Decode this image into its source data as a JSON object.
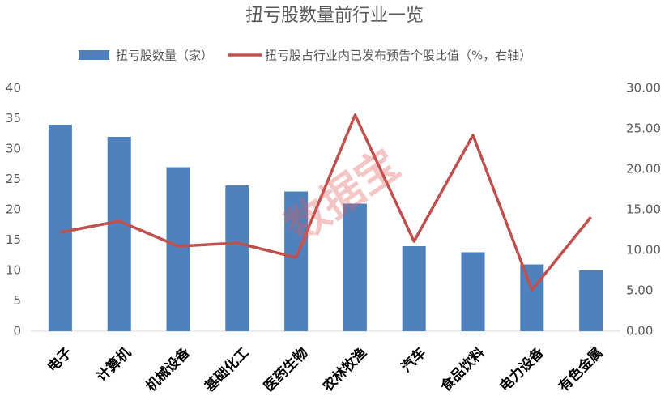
{
  "chart_data": {
    "type": "bar",
    "title": "扭亏股数量前行业一览",
    "watermark": "数据宝",
    "categories": [
      "电子",
      "计算机",
      "机械设备",
      "基础化工",
      "医药生物",
      "农林牧渔",
      "汽车",
      "食品饮料",
      "电力设备",
      "有色金属"
    ],
    "series": [
      {
        "name": "扭亏股数量（家）",
        "type": "bar",
        "color": "#4f81bd",
        "values": [
          34,
          32,
          27,
          24,
          23,
          21,
          14,
          13,
          11,
          10
        ]
      },
      {
        "name": "扭亏股占行业内已发布预告个股比值（%，右轴）",
        "type": "line",
        "axis": "y2",
        "color": "#c0504d",
        "values": [
          12.2,
          13.6,
          10.5,
          10.9,
          9.1,
          26.7,
          11.1,
          24.2,
          5.1,
          14.1
        ]
      }
    ],
    "ylim": [
      0,
      40
    ],
    "yticks": [
      0,
      5,
      10,
      15,
      20,
      25,
      30,
      35,
      40
    ],
    "y2lim": [
      0,
      30
    ],
    "y2ticks": [
      {
        "value": 0,
        "label": "0.00"
      },
      {
        "value": 5,
        "label": "5.00"
      },
      {
        "value": 10,
        "label": "10.00"
      },
      {
        "value": 15,
        "label": "15.00"
      },
      {
        "value": 20,
        "label": "20.00"
      },
      {
        "value": 25,
        "label": "25.00"
      },
      {
        "value": 30,
        "label": "30.00"
      }
    ],
    "grid": false
  }
}
